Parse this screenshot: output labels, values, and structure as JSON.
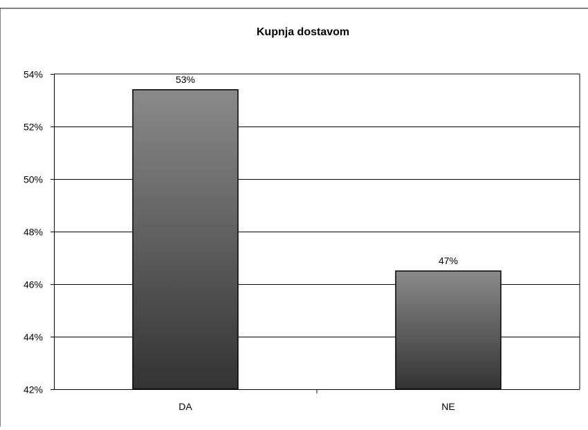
{
  "chart_data": {
    "type": "bar",
    "title": "Kupnja dostavom",
    "xlabel": "",
    "ylabel": "",
    "categories": [
      "DA",
      "NE"
    ],
    "values": [
      53.4,
      46.5
    ],
    "data_labels": [
      "53%",
      "47%"
    ],
    "ylim": [
      42,
      54
    ],
    "yticks": [
      42,
      44,
      46,
      48,
      50,
      52,
      54
    ],
    "ytick_labels": [
      "42%",
      "44%",
      "46%",
      "48%",
      "50%",
      "52%",
      "54%"
    ],
    "grid": true,
    "legend": "none",
    "colors": {
      "bar_top": "#8a8a8a",
      "bar_bottom": "#333333",
      "gridline": "#000000"
    }
  }
}
